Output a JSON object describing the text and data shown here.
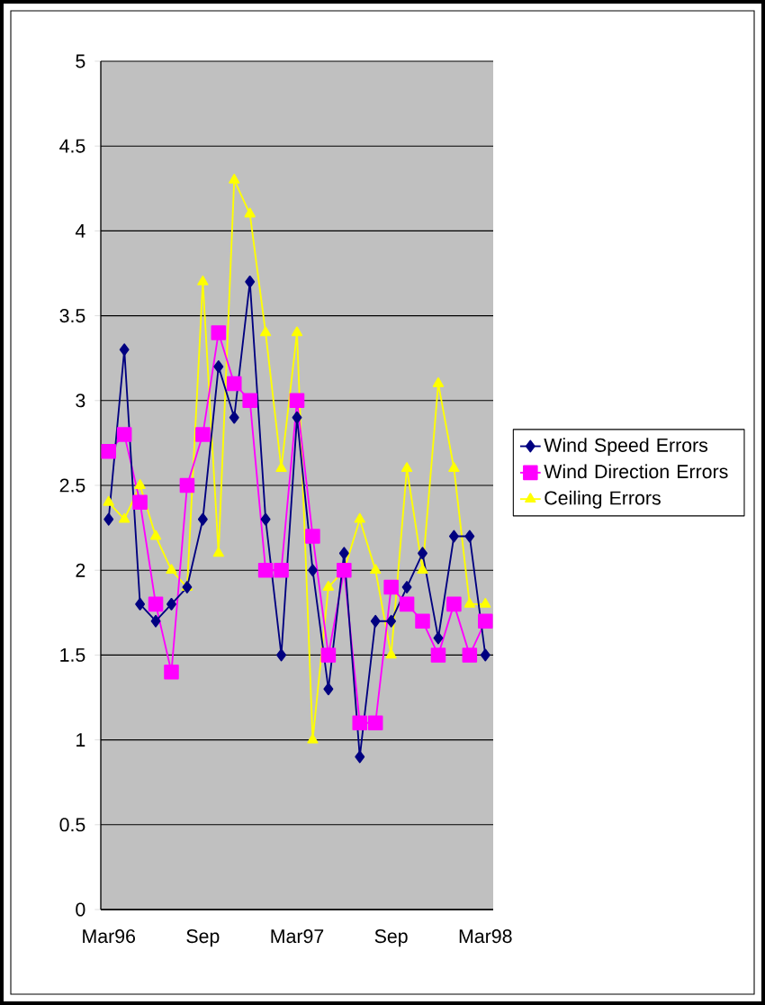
{
  "chart_data": {
    "type": "line",
    "categories": [
      "Mar96",
      null,
      null,
      null,
      null,
      null,
      "Sep",
      null,
      null,
      null,
      null,
      null,
      "Mar97",
      null,
      null,
      null,
      null,
      null,
      "Sep",
      null,
      null,
      null,
      null,
      null,
      "Mar98"
    ],
    "series": [
      {
        "name": "Wind Speed Errors",
        "color": "#000080",
        "marker": "diamond",
        "values": [
          2.3,
          3.3,
          1.8,
          1.7,
          1.8,
          1.9,
          2.3,
          3.2,
          2.9,
          3.7,
          2.3,
          1.5,
          2.9,
          2.0,
          1.3,
          2.1,
          0.9,
          1.7,
          1.7,
          1.9,
          2.1,
          1.6,
          2.2,
          2.2,
          1.5
        ]
      },
      {
        "name": "Wind Direction Errors",
        "color": "#ff00ff",
        "marker": "square",
        "values": [
          2.7,
          2.8,
          2.4,
          1.8,
          1.4,
          2.5,
          2.8,
          3.4,
          3.1,
          3.0,
          2.0,
          2.0,
          3.0,
          2.2,
          1.5,
          2.0,
          1.1,
          1.1,
          1.9,
          1.8,
          1.7,
          1.5,
          1.8,
          1.5,
          1.7
        ]
      },
      {
        "name": "Ceiling Errors",
        "color": "#ffff00",
        "marker": "triangle",
        "values": [
          2.4,
          2.3,
          2.5,
          2.2,
          2.0,
          1.9,
          3.7,
          2.1,
          4.3,
          4.1,
          3.4,
          2.6,
          3.4,
          1.0,
          1.9,
          2.0,
          2.3,
          2.0,
          1.5,
          2.6,
          2.0,
          3.1,
          2.6,
          1.8,
          1.8
        ]
      }
    ],
    "ylim": [
      0,
      5
    ],
    "yticks": [
      0,
      0.5,
      1,
      1.5,
      2,
      2.5,
      3,
      3.5,
      4,
      4.5,
      5
    ],
    "grid": "y",
    "legend": "right"
  }
}
